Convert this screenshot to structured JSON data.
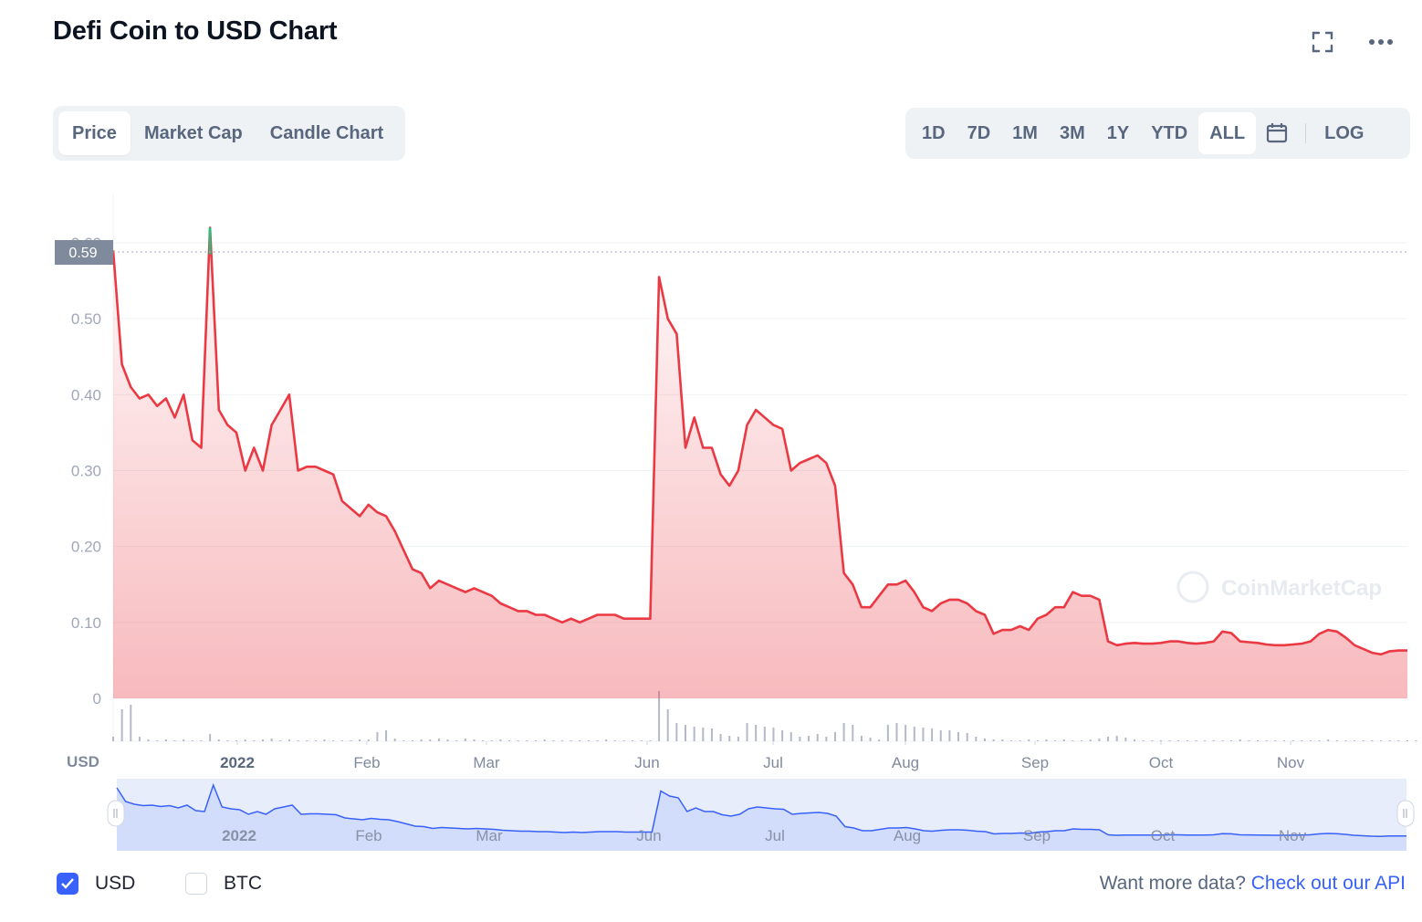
{
  "header": {
    "title": "Defi Coin to USD Chart",
    "fullscreen_icon": "fullscreen-icon",
    "more_icon": "more-options-icon"
  },
  "tabs": [
    {
      "label": "Price",
      "active": true
    },
    {
      "label": "Market Cap",
      "active": false
    },
    {
      "label": "Candle Chart",
      "active": false
    }
  ],
  "ranges": [
    {
      "label": "1D"
    },
    {
      "label": "7D"
    },
    {
      "label": "1M"
    },
    {
      "label": "3M"
    },
    {
      "label": "1Y"
    },
    {
      "label": "YTD"
    },
    {
      "label": "ALL",
      "active": true
    }
  ],
  "calendar_icon": "calendar-icon",
  "log_label": "LOG",
  "legend": {
    "usd": {
      "label": "USD",
      "checked": true
    },
    "btc": {
      "label": "BTC",
      "checked": false
    }
  },
  "footer": {
    "prefix": "Want more data? ",
    "link": "Check out our API"
  },
  "watermark": "CoinMarketCap",
  "colors": {
    "line": "#ea3943",
    "peak": "#16c784",
    "accent": "#3861fb",
    "volume": "#a1a7bb",
    "navigator_line": "#3861fb"
  },
  "chart_data": {
    "type": "line",
    "ylabel": "USD",
    "ylim": [
      0,
      0.6
    ],
    "yticks": [
      "0",
      "0.10",
      "0.20",
      "0.30",
      "0.40",
      "0.50",
      "0.60"
    ],
    "current_price_label": "0.59",
    "x_labels": [
      "2022",
      "Feb",
      "Mar",
      "Jun",
      "Jul",
      "Aug",
      "Sep",
      "Oct",
      "Nov"
    ],
    "grid": true,
    "series": [
      {
        "values": [
          0.59,
          0.44,
          0.41,
          0.395,
          0.4,
          0.385,
          0.395,
          0.37,
          0.4,
          0.34,
          0.33,
          0.62,
          0.38,
          0.36,
          0.35,
          0.3,
          0.33,
          0.3,
          0.36,
          0.38,
          0.4,
          0.3,
          0.305,
          0.305,
          0.3,
          0.295,
          0.26,
          0.25,
          0.24,
          0.255,
          0.245,
          0.24,
          0.22,
          0.195,
          0.17,
          0.165,
          0.145,
          0.155,
          0.15,
          0.145,
          0.14,
          0.145,
          0.14,
          0.135,
          0.125,
          0.12,
          0.115,
          0.115,
          0.11,
          0.11,
          0.105,
          0.1,
          0.105,
          0.1,
          0.105,
          0.11,
          0.11,
          0.11,
          0.105,
          0.105,
          0.105,
          0.105,
          0.555,
          0.5,
          0.48,
          0.33,
          0.37,
          0.33,
          0.33,
          0.295,
          0.28,
          0.3,
          0.36,
          0.38,
          0.37,
          0.36,
          0.355,
          0.3,
          0.31,
          0.315,
          0.32,
          0.31,
          0.28,
          0.165,
          0.15,
          0.12,
          0.12,
          0.135,
          0.15,
          0.15,
          0.155,
          0.14,
          0.12,
          0.115,
          0.125,
          0.13,
          0.13,
          0.125,
          0.115,
          0.11,
          0.085,
          0.09,
          0.09,
          0.095,
          0.09,
          0.105,
          0.11,
          0.12,
          0.12,
          0.14,
          0.135,
          0.135,
          0.13,
          0.075,
          0.07,
          0.072,
          0.073,
          0.072,
          0.072,
          0.073,
          0.075,
          0.075,
          0.073,
          0.072,
          0.073,
          0.075,
          0.088,
          0.086,
          0.075,
          0.074,
          0.073,
          0.071,
          0.07,
          0.07,
          0.071,
          0.072,
          0.075,
          0.085,
          0.09,
          0.088,
          0.08,
          0.07,
          0.065,
          0.06,
          0.058,
          0.062,
          0.063,
          0.063
        ],
        "color": "#ea3943"
      }
    ],
    "volume": [
      0.05,
      0.35,
      0.4,
      0.05,
      0.02,
      0.01,
      0.02,
      0.01,
      0.02,
      0.01,
      0.01,
      0.08,
      0.02,
      0.01,
      0.01,
      0.02,
      0.01,
      0.02,
      0.03,
      0.01,
      0.02,
      0.01,
      0.01,
      0.01,
      0.02,
      0.01,
      0.01,
      0.01,
      0.02,
      0.02,
      0.1,
      0.12,
      0.03,
      0.01,
      0.01,
      0.02,
      0.02,
      0.03,
      0.02,
      0.01,
      0.03,
      0.02,
      0.01,
      0.01,
      0.02,
      0.01,
      0.01,
      0.01,
      0.01,
      0.02,
      0.01,
      0.01,
      0.01,
      0.01,
      0.01,
      0.01,
      0.02,
      0.01,
      0.01,
      0.01,
      0.01,
      0.01,
      0.55,
      0.35,
      0.2,
      0.18,
      0.16,
      0.15,
      0.14,
      0.08,
      0.06,
      0.05,
      0.2,
      0.18,
      0.16,
      0.15,
      0.12,
      0.1,
      0.05,
      0.06,
      0.08,
      0.05,
      0.1,
      0.2,
      0.18,
      0.06,
      0.04,
      0.02,
      0.18,
      0.2,
      0.18,
      0.16,
      0.15,
      0.14,
      0.12,
      0.12,
      0.1,
      0.09,
      0.05,
      0.03,
      0.02,
      0.02,
      0.01,
      0.01,
      0.02,
      0.01,
      0.02,
      0.01,
      0.02,
      0.01,
      0.01,
      0.02,
      0.03,
      0.05,
      0.06,
      0.04,
      0.02,
      0.01,
      0.01,
      0.01,
      0.01,
      0.01,
      0.01,
      0.01,
      0.01,
      0.01,
      0.01,
      0.01,
      0.02,
      0.01,
      0.01,
      0.01,
      0.01,
      0.01,
      0.01,
      0.01,
      0.01,
      0.01,
      0.02,
      0.01,
      0.01,
      0.01,
      0.01,
      0.01,
      0.01,
      0.01,
      0.01,
      0.01,
      0.01,
      0.01,
      0.01
    ],
    "navigator_labels": [
      "2022",
      "Feb",
      "Mar",
      "Jun",
      "Jul",
      "Aug",
      "Sep",
      "Oct",
      "Nov"
    ]
  }
}
